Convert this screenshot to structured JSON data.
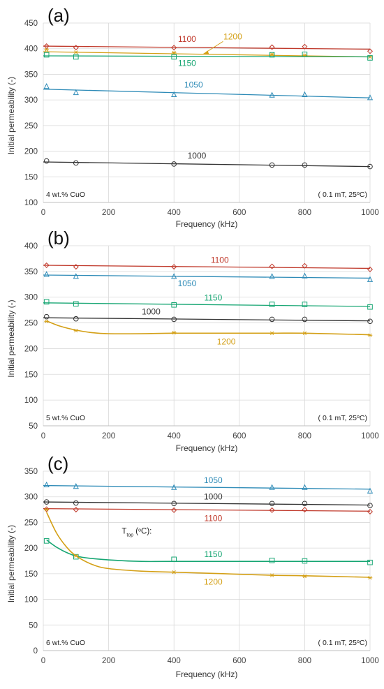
{
  "chart_data": [
    {
      "type": "line",
      "panel_label": "(a)",
      "composition_label": "4 wt.% CuO",
      "condition_label": "( 0.1 mT, 25°C)",
      "condition_parts": [
        "( 0.1 mT, 25",
        "o",
        "C)"
      ],
      "xlabel": "Frequency (kHz)",
      "ylabel": "Initial permeability (-)",
      "xlim": [
        0,
        1000
      ],
      "ylim": [
        100,
        450
      ],
      "x_ticks": [
        0,
        200,
        400,
        600,
        800,
        1000
      ],
      "y_ticks": [
        100,
        150,
        200,
        250,
        300,
        350,
        400,
        450
      ],
      "x": [
        10,
        100,
        400,
        700,
        800,
        1000
      ],
      "series": [
        {
          "name": "1100",
          "color": "#c0392b",
          "marker": "diamond",
          "values": [
            405,
            402,
            402,
            403,
            404,
            395
          ],
          "fit": [
            [
              0,
              405
            ],
            [
              1000,
              399
            ]
          ]
        },
        {
          "name": "1200",
          "color": "#d4a017",
          "marker": "star",
          "values": [
            398,
            393,
            392,
            389,
            387,
            384
          ],
          "fit": [
            [
              0,
              394
            ],
            [
              1000,
              384
            ]
          ]
        },
        {
          "name": "1150",
          "color": "#17a673",
          "marker": "square",
          "values": [
            388,
            384,
            384,
            388,
            389,
            382
          ],
          "fit": [
            [
              0,
              386
            ],
            [
              1000,
              384
            ]
          ]
        },
        {
          "name": "1050",
          "color": "#2e8bb7",
          "marker": "triangle",
          "values": [
            326,
            314,
            310,
            309,
            310,
            304
          ],
          "fit": [
            [
              0,
              321
            ],
            [
              1000,
              304
            ]
          ]
        },
        {
          "name": "1000",
          "color": "#333333",
          "marker": "circle",
          "values": [
            181,
            177,
            175,
            173,
            173,
            170
          ],
          "fit": [
            [
              0,
              179
            ],
            [
              1000,
              170
            ]
          ]
        }
      ]
    },
    {
      "type": "line",
      "panel_label": "(b)",
      "composition_label": "5 wt.% CuO",
      "condition_label": "( 0.1 mT, 25°C)",
      "condition_parts": [
        "( 0.1 mT, 25",
        "o",
        "C)"
      ],
      "xlabel": "Frequency (kHz)",
      "ylabel": "Initial permeability (-)",
      "xlim": [
        0,
        1000
      ],
      "ylim": [
        50,
        400
      ],
      "x_ticks": [
        0,
        200,
        400,
        600,
        800,
        1000
      ],
      "y_ticks": [
        50,
        100,
        150,
        200,
        250,
        300,
        350,
        400
      ],
      "x": [
        10,
        100,
        400,
        700,
        800,
        1000
      ],
      "series": [
        {
          "name": "1100",
          "color": "#c0392b",
          "marker": "diamond",
          "values": [
            362,
            359,
            359,
            360,
            361,
            354
          ],
          "fit": [
            [
              0,
              362
            ],
            [
              1000,
              356
            ]
          ]
        },
        {
          "name": "1050",
          "color": "#2e8bb7",
          "marker": "triangle",
          "values": [
            344,
            340,
            340,
            340,
            341,
            334
          ],
          "fit": [
            [
              0,
              343
            ],
            [
              1000,
              337
            ]
          ]
        },
        {
          "name": "1150",
          "color": "#17a673",
          "marker": "square",
          "values": [
            291,
            287,
            285,
            286,
            286,
            281
          ],
          "fit": [
            [
              0,
              289
            ],
            [
              1000,
              282
            ]
          ]
        },
        {
          "name": "1000",
          "color": "#333333",
          "marker": "circle",
          "values": [
            262,
            258,
            257,
            257,
            257,
            253
          ],
          "fit": [
            [
              0,
              260
            ],
            [
              1000,
              254
            ]
          ]
        },
        {
          "name": "1200",
          "color": "#d4a017",
          "marker": "star",
          "values": [
            253,
            235,
            231,
            230,
            230,
            226
          ],
          "fit": [
            [
              10,
              254
            ],
            [
              50,
              244
            ],
            [
              100,
              236
            ],
            [
              150,
              231
            ],
            [
              200,
              229
            ],
            [
              300,
              229
            ],
            [
              400,
              230
            ],
            [
              550,
              230
            ],
            [
              700,
              230
            ],
            [
              800,
              230
            ],
            [
              1000,
              227
            ]
          ]
        }
      ]
    },
    {
      "type": "line",
      "panel_label": "(c)",
      "composition_label": "6 wt.% CuO",
      "condition_label": "( 0.1 mT, 25°C)",
      "condition_parts": [
        "( 0.1 mT, 25",
        "o",
        "C)"
      ],
      "legend_title": "Ttop (°C):",
      "legend_title_parts": [
        "T",
        "top",
        " (",
        "o",
        "C):"
      ],
      "xlabel": "Frequency (kHz)",
      "ylabel": "Initial permeability (-)",
      "xlim": [
        0,
        1000
      ],
      "ylim": [
        0,
        350
      ],
      "x_ticks": [
        0,
        200,
        400,
        600,
        800,
        1000
      ],
      "y_ticks": [
        0,
        50,
        100,
        150,
        200,
        250,
        300,
        350
      ],
      "x": [
        10,
        100,
        400,
        700,
        800,
        1000
      ],
      "series": [
        {
          "name": "1050",
          "color": "#2e8bb7",
          "marker": "triangle",
          "values": [
            323,
            320,
            318,
            318,
            318,
            311
          ],
          "fit": [
            [
              0,
              322
            ],
            [
              1000,
              315
            ]
          ]
        },
        {
          "name": "1000",
          "color": "#333333",
          "marker": "circle",
          "values": [
            290,
            288,
            287,
            287,
            287,
            283
          ],
          "fit": [
            [
              0,
              290
            ],
            [
              1000,
              284
            ]
          ]
        },
        {
          "name": "1100",
          "color": "#c0392b",
          "marker": "diamond",
          "values": [
            276,
            275,
            274,
            274,
            275,
            271
          ],
          "fit": [
            [
              0,
              277
            ],
            [
              1000,
              272
            ]
          ]
        },
        {
          "name": "1150",
          "color": "#17a673",
          "marker": "square",
          "values": [
            214,
            183,
            178,
            176,
            175,
            172
          ],
          "fit": [
            [
              10,
              216
            ],
            [
              40,
              202
            ],
            [
              80,
              189
            ],
            [
              120,
              182
            ],
            [
              200,
              177
            ],
            [
              300,
              174
            ],
            [
              400,
              174
            ],
            [
              700,
              174
            ],
            [
              1000,
              174
            ]
          ]
        },
        {
          "name": "1200",
          "color": "#d4a017",
          "marker": "star",
          "values": [
            275,
            185,
            153,
            147,
            145,
            142
          ],
          "fit": [
            [
              10,
              270
            ],
            [
              40,
              230
            ],
            [
              70,
              203
            ],
            [
              100,
              185
            ],
            [
              150,
              168
            ],
            [
              200,
              160
            ],
            [
              300,
              155
            ],
            [
              400,
              153
            ],
            [
              550,
              150
            ],
            [
              700,
              147
            ],
            [
              800,
              146
            ],
            [
              1000,
              143
            ]
          ]
        }
      ]
    }
  ]
}
